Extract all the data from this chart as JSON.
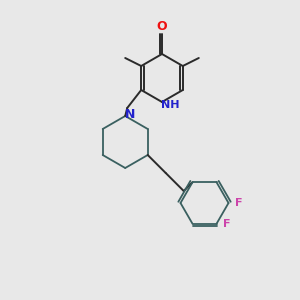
{
  "background_color": "#e8e8e8",
  "bond_color": "#2a2a2a",
  "bond_color_ring": "#3a6060",
  "atom_colors": {
    "O": "#ee1111",
    "N_pyridinone": "#2222cc",
    "N_piperidine": "#2222cc",
    "F": "#cc44aa",
    "C": "#1a1a1a"
  },
  "figsize": [
    3.0,
    3.0
  ],
  "dpi": 100,
  "lw": 1.4,
  "ring_lw": 1.3
}
